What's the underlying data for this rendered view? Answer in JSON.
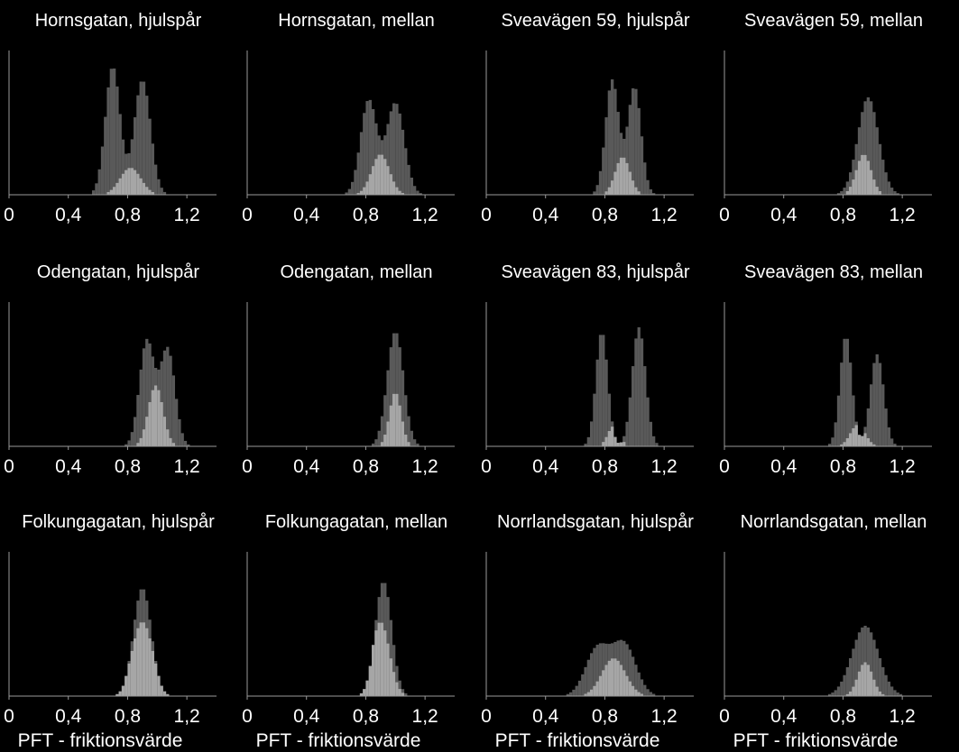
{
  "chart_data": {
    "type": "histogram-grid",
    "x_axis_label": "PFT - friktionsvärde",
    "xlim": [
      0,
      1.4
    ],
    "tick_values": [
      0,
      0.4,
      0.8,
      1.2
    ],
    "tick_labels": [
      "0",
      "0,4",
      "0,8",
      "1,2"
    ],
    "bin_width": 0.02,
    "series_colors": {
      "back": "#595959",
      "front": "#a6a6a6",
      "axis": "#9a9a9a",
      "text": "#ffffff"
    },
    "panels": [
      {
        "title": "Hornsgatan, hjulspår",
        "mode": "bimodal",
        "p1": [
          0.7,
          0.05,
          0.95
        ],
        "p2": [
          0.9,
          0.055,
          0.85
        ],
        "f": [
          0.82,
          0.07,
          0.2
        ],
        "ymax": 1.0
      },
      {
        "title": "Hornsgatan, mellan",
        "mode": "bimodal",
        "p1": [
          0.82,
          0.055,
          0.7
        ],
        "p2": [
          1.0,
          0.06,
          0.68
        ],
        "f": [
          0.9,
          0.06,
          0.3
        ],
        "ymax": 1.0
      },
      {
        "title": "Sveavägen 59, hjulspår",
        "mode": "bimodal",
        "p1": [
          0.85,
          0.045,
          0.85
        ],
        "p2": [
          1.0,
          0.045,
          0.8
        ],
        "f": [
          0.92,
          0.05,
          0.28
        ],
        "ymax": 1.0
      },
      {
        "title": "Sveavägen 59, mellan",
        "mode": "single",
        "p1": [
          0.97,
          0.07,
          0.72
        ],
        "f": [
          0.94,
          0.05,
          0.3
        ],
        "ymax": 1.0
      },
      {
        "title": "Odengatan, hjulspår",
        "mode": "bimodal",
        "p1": [
          0.93,
          0.05,
          0.78
        ],
        "p2": [
          1.07,
          0.05,
          0.72
        ],
        "f": [
          0.99,
          0.05,
          0.45
        ],
        "ymax": 1.0
      },
      {
        "title": "Odengatan, mellan",
        "mode": "single",
        "p1": [
          1.0,
          0.055,
          0.85
        ],
        "f": [
          1.0,
          0.04,
          0.4
        ],
        "ymax": 1.0
      },
      {
        "title": "Sveavägen 83, hjulspår",
        "mode": "bimodal",
        "p1": [
          0.78,
          0.04,
          0.85
        ],
        "p2": [
          1.03,
          0.045,
          0.88
        ],
        "f": [
          0.86,
          0.04,
          0.15
        ],
        "ymax": 1.0
      },
      {
        "title": "Sveavägen 83, mellan",
        "mode": "bimodal",
        "p1": [
          0.82,
          0.04,
          0.82
        ],
        "p2": [
          1.03,
          0.045,
          0.68
        ],
        "f": [
          0.9,
          0.05,
          0.16
        ],
        "ymax": 1.0
      },
      {
        "title": "Folkungagatan, hjulspår",
        "mode": "single",
        "p1": [
          0.9,
          0.06,
          0.8
        ],
        "f": [
          0.9,
          0.07,
          0.55
        ],
        "ymax": 1.0
      },
      {
        "title": "Folkungagatan, mellan",
        "mode": "single",
        "p1": [
          0.92,
          0.055,
          0.85
        ],
        "f": [
          0.9,
          0.06,
          0.55
        ],
        "ymax": 1.0
      },
      {
        "title": "Norrlandsgatan, hjulspår",
        "mode": "bimodal",
        "p1": [
          0.75,
          0.08,
          0.35
        ],
        "p2": [
          0.93,
          0.08,
          0.38
        ],
        "f": [
          0.86,
          0.08,
          0.28
        ],
        "ymax": 1.0
      },
      {
        "title": "Norrlandsgatan, mellan",
        "mode": "single",
        "p1": [
          0.95,
          0.09,
          0.52
        ],
        "f": [
          0.95,
          0.05,
          0.25
        ],
        "ymax": 1.0
      }
    ]
  }
}
